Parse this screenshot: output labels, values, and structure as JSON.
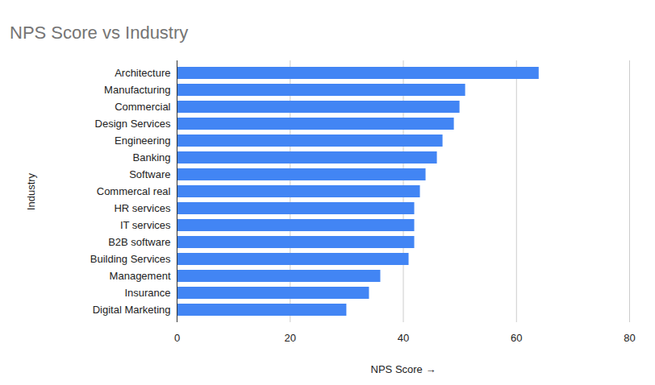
{
  "chart_data": {
    "type": "bar",
    "orientation": "horizontal",
    "title": "NPS Score vs Industry",
    "xlabel": "NPS Score",
    "ylabel": "Industry",
    "categories": [
      "Architecture",
      "Manufacturing",
      "Commercial",
      "Design Services",
      "Engineering",
      "Banking",
      "Software",
      "Commercal real",
      "HR services",
      "IT services",
      "B2B software",
      "Building Services",
      "Management",
      "Insurance",
      "Digital Marketing"
    ],
    "values": [
      64,
      51,
      50,
      49,
      47,
      46,
      44,
      43,
      42,
      42,
      42,
      41,
      36,
      34,
      30
    ],
    "color": "#4285f4",
    "xlim": [
      0,
      80
    ],
    "xticks": [
      0,
      20,
      40,
      60,
      80
    ],
    "grid": true
  }
}
